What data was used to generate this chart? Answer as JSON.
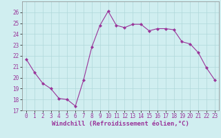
{
  "x": [
    0,
    1,
    2,
    3,
    4,
    5,
    6,
    7,
    8,
    9,
    10,
    11,
    12,
    13,
    14,
    15,
    16,
    17,
    18,
    19,
    20,
    21,
    22,
    23
  ],
  "y": [
    21.7,
    20.5,
    19.5,
    19.0,
    18.1,
    18.0,
    17.4,
    19.8,
    22.8,
    24.8,
    26.1,
    24.8,
    24.6,
    24.9,
    24.9,
    24.3,
    24.5,
    24.5,
    24.4,
    23.3,
    23.1,
    22.3,
    20.9,
    19.8
  ],
  "line_color": "#993399",
  "marker": "D",
  "marker_size": 2.2,
  "bg_color": "#d0eef0",
  "grid_color": "#b0d8da",
  "xlabel": "Windchill (Refroidissement éolien,°C)",
  "ylim": [
    17,
    27
  ],
  "xlim": [
    -0.5,
    23.5
  ],
  "yticks": [
    17,
    18,
    19,
    20,
    21,
    22,
    23,
    24,
    25,
    26
  ],
  "xticks": [
    0,
    1,
    2,
    3,
    4,
    5,
    6,
    7,
    8,
    9,
    10,
    11,
    12,
    13,
    14,
    15,
    16,
    17,
    18,
    19,
    20,
    21,
    22,
    23
  ],
  "xlabel_fontsize": 6.5,
  "tick_fontsize": 5.5
}
